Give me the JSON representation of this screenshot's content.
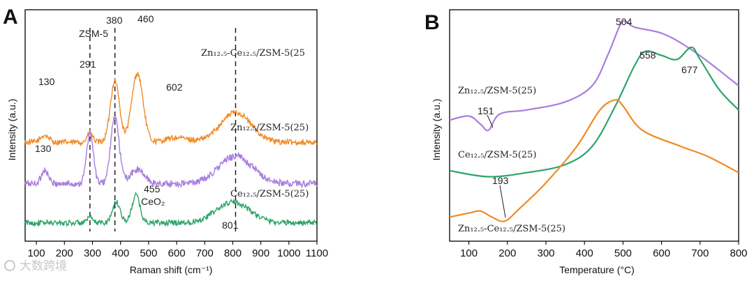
{
  "watermark": "大数跨境",
  "chart_data": [
    {
      "panel": "A",
      "type": "line",
      "title": "",
      "xlabel": "Raman shift (cm⁻¹)",
      "ylabel": "Intensity (a.u.)",
      "xlim": [
        60,
        1100
      ],
      "xticks": [
        100,
        200,
        300,
        400,
        500,
        600,
        700,
        800,
        900,
        1000,
        1100
      ],
      "xtick_labels": [
        "100",
        "200",
        "300",
        "400",
        "500",
        "600",
        "700",
        "800",
        "900",
        "1000",
        "1100"
      ],
      "ylim": [
        0,
        1
      ],
      "series": [
        {
          "name": "Zn12.5-Ce12.5/ZSM-5(25)",
          "color": "#f08a24",
          "noise": 0.012,
          "baseline": 0.43,
          "peaks": [
            [
              130,
              0.03,
              15
            ],
            [
              291,
              0.04,
              10
            ],
            [
              380,
              0.27,
              16
            ],
            [
              460,
              0.3,
              20
            ],
            [
              602,
              0.02,
              40
            ],
            [
              810,
              0.13,
              55
            ]
          ]
        },
        {
          "name": "Zn12.5/ZSM-5(25)",
          "color": "#a77ddf",
          "noise": 0.015,
          "baseline": 0.25,
          "peaks": [
            [
              130,
              0.06,
              12
            ],
            [
              291,
              0.22,
              12
            ],
            [
              380,
              0.29,
              15
            ],
            [
              460,
              0.06,
              25
            ],
            [
              810,
              0.12,
              60
            ]
          ]
        },
        {
          "name": "Ce12.5/ZSM-5(25)",
          "color": "#2ea36b",
          "noise": 0.012,
          "baseline": 0.08,
          "peaks": [
            [
              291,
              0.02,
              10
            ],
            [
              385,
              0.09,
              14
            ],
            [
              455,
              0.12,
              14
            ],
            [
              801,
              0.09,
              60
            ]
          ]
        }
      ],
      "dashed_lines_at": [
        291,
        380,
        810
      ],
      "annotations": {
        "a130_top": "130",
        "a380": "380",
        "a460": "460",
        "a291": "291",
        "a602": "602",
        "a130_mid": "130",
        "a455": "455",
        "a801": "801",
        "zsm5": "ZSM-5",
        "ceo2": "CeO₂",
        "lbl_zn_ce": "Zn₁₂.₅-Ce₁₂.₅/ZSM-5(25",
        "lbl_zn": "Zn₁₂.₅/ZSM-5(25)",
        "lbl_ce": "Ce₁₂.₅/ZSM-5(25)"
      }
    },
    {
      "panel": "B",
      "type": "line",
      "title": "",
      "xlabel": "Temperature (°C)",
      "ylabel": "Intensity (a.u.)",
      "xlim": [
        50,
        800
      ],
      "xticks": [
        100,
        200,
        300,
        400,
        500,
        600,
        700,
        800
      ],
      "xtick_labels": [
        "100",
        "200",
        "300",
        "400",
        "500",
        "600",
        "700",
        "800"
      ],
      "ylim": [
        0,
        1
      ],
      "series": [
        {
          "name": "Zn12.5/ZSM-5(25)",
          "color": "#a77ddf",
          "x": [
            50,
            100,
            130,
            151,
            180,
            250,
            350,
            420,
            460,
            490,
            504,
            530,
            600,
            660,
            720,
            800
          ],
          "y": [
            0.53,
            0.55,
            0.51,
            0.48,
            0.56,
            0.58,
            0.62,
            0.7,
            0.85,
            0.99,
            1.02,
            0.99,
            0.96,
            0.9,
            0.82,
            0.7
          ]
        },
        {
          "name": "Ce12.5/ZSM-5(25)",
          "color": "#2ea36b",
          "x": [
            50,
            150,
            250,
            350,
            420,
            480,
            530,
            558,
            600,
            640,
            677,
            700,
            750,
            800
          ],
          "y": [
            0.28,
            0.25,
            0.27,
            0.31,
            0.4,
            0.6,
            0.8,
            0.87,
            0.85,
            0.83,
            0.89,
            0.83,
            0.68,
            0.58
          ]
        },
        {
          "name": "Zn12.5-Ce12.5/ZSM-5(25)",
          "color": "#f08a24",
          "x": [
            50,
            100,
            130,
            160,
            193,
            230,
            300,
            380,
            440,
            480,
            500,
            550,
            650,
            720,
            800
          ],
          "y": [
            0.05,
            0.07,
            0.08,
            0.05,
            0.03,
            0.09,
            0.22,
            0.4,
            0.58,
            0.63,
            0.6,
            0.48,
            0.4,
            0.35,
            0.27
          ]
        }
      ],
      "annotations": {
        "b504": "504",
        "b558": "558",
        "b677": "677",
        "b151": "151",
        "b193": "193",
        "lbl_zn": "Zn₁₂.₅/ZSM-5(25)",
        "lbl_ce": "Ce₁₂.₅/ZSM-5(25)",
        "lbl_zn_ce": "Zn₁₂.₅-Ce₁₂.₅/ZSM-5(25)"
      }
    }
  ]
}
